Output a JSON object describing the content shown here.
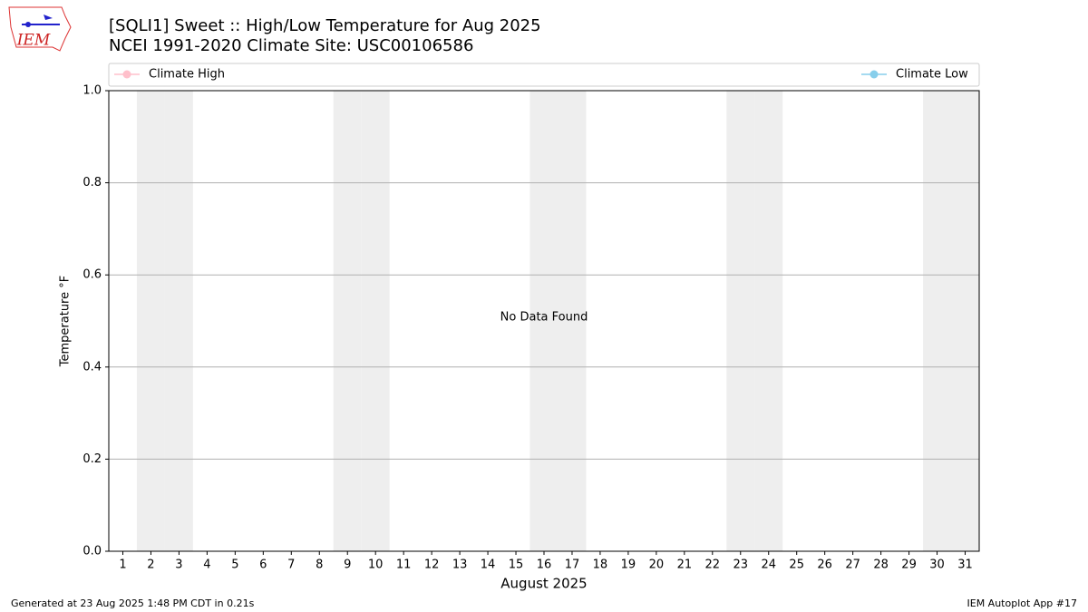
{
  "chart_data": {
    "type": "line",
    "title": "[SQLI1] Sweet :: High/Low Temperature for Aug 2025",
    "subtitle": "NCEI 1991-2020 Climate Site: USC00106586",
    "logo_text": "IEM",
    "x_label": "August 2025",
    "y_label": "Temperature °F",
    "annotation": "No Data Found",
    "footer_left": "Generated at 23 Aug 2025 1:48 PM CDT in 0.21s",
    "footer_right": "IEM Autoplot App #17",
    "x": [
      1,
      2,
      3,
      4,
      5,
      6,
      7,
      8,
      9,
      10,
      11,
      12,
      13,
      14,
      15,
      16,
      17,
      18,
      19,
      20,
      21,
      22,
      23,
      24,
      25,
      26,
      27,
      28,
      29,
      30,
      31
    ],
    "series": [
      {
        "name": "Climate High",
        "color": "pink",
        "values": [
          null,
          null,
          null,
          null,
          null,
          null,
          null,
          null,
          null,
          null,
          null,
          null,
          null,
          null,
          null,
          null,
          null,
          null,
          null,
          null,
          null,
          null,
          null,
          null,
          null,
          null,
          null,
          null,
          null,
          null,
          null
        ]
      },
      {
        "name": "Climate Low",
        "color": "skyblue",
        "values": [
          null,
          null,
          null,
          null,
          null,
          null,
          null,
          null,
          null,
          null,
          null,
          null,
          null,
          null,
          null,
          null,
          null,
          null,
          null,
          null,
          null,
          null,
          null,
          null,
          null,
          null,
          null,
          null,
          null,
          null,
          null
        ]
      }
    ],
    "weekend_days": [
      2,
      3,
      9,
      10,
      16,
      17,
      23,
      24,
      30,
      31
    ],
    "weekend_color": "#eeeeee",
    "xlim": [
      0.5,
      31.5
    ],
    "xticks": [
      1,
      2,
      3,
      4,
      5,
      6,
      7,
      8,
      9,
      10,
      11,
      12,
      13,
      14,
      15,
      16,
      17,
      18,
      19,
      20,
      21,
      22,
      23,
      24,
      25,
      26,
      27,
      28,
      29,
      30,
      31
    ],
    "ylim": [
      0,
      1
    ],
    "yticks": [
      {
        "value": 0,
        "label": "0.0"
      },
      {
        "value": 0.2,
        "label": "0.2"
      },
      {
        "value": 0.4,
        "label": "0.4"
      },
      {
        "value": 0.6,
        "label": "0.6"
      },
      {
        "value": 0.8,
        "label": "0.8"
      },
      {
        "value": 1,
        "label": "1.0"
      }
    ],
    "grid": true
  }
}
